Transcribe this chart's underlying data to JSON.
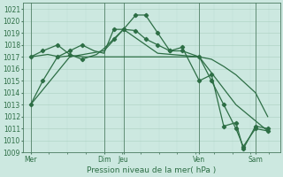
{
  "xlabel": "Pression niveau de la mer( hPa )",
  "ylim": [
    1009,
    1021.5
  ],
  "yticks": [
    1009,
    1010,
    1011,
    1012,
    1013,
    1014,
    1015,
    1016,
    1017,
    1018,
    1019,
    1020,
    1021
  ],
  "bg_color": "#cce8e0",
  "grid_major_color": "#aad0c0",
  "grid_minor_color": "#bbddd4",
  "line_color": "#2d6e45",
  "vline_color": "#4a7a60",
  "xlim": [
    0,
    10.5
  ],
  "xtick_positions": [
    0.3,
    3.3,
    4.1,
    7.2,
    9.5
  ],
  "xtick_labels": [
    "Mer",
    "Dim",
    "Jeu",
    "Ven",
    "Sam"
  ],
  "vlines_x": [
    0.3,
    3.3,
    4.1,
    7.2,
    9.5
  ],
  "series1_x": [
    0.3,
    0.8,
    1.4,
    1.9,
    2.4,
    2.9,
    3.3,
    3.7,
    4.1,
    4.6,
    5.0,
    5.5,
    6.0,
    6.5,
    7.2,
    7.7,
    8.2,
    8.7,
    9.0,
    9.5,
    10.0
  ],
  "series1_y": [
    1013.0,
    1015.0,
    1017.0,
    1017.5,
    1018.0,
    1017.5,
    1017.3,
    1019.3,
    1019.3,
    1020.5,
    1020.5,
    1019.0,
    1017.5,
    1017.5,
    1017.0,
    1015.0,
    1013.0,
    1011.0,
    1009.5,
    1011.0,
    1010.8
  ],
  "series1_markers_x": [
    0.3,
    0.8,
    1.4,
    1.9,
    2.4,
    3.7,
    4.1,
    4.6,
    5.0,
    5.5,
    6.0,
    6.5,
    7.2,
    7.7,
    8.2,
    8.7,
    9.0,
    9.5,
    10.0
  ],
  "series1_markers_y": [
    1013.0,
    1015.0,
    1017.0,
    1017.5,
    1018.0,
    1019.3,
    1019.3,
    1020.5,
    1020.5,
    1019.0,
    1017.5,
    1017.5,
    1017.0,
    1015.0,
    1013.0,
    1011.0,
    1009.5,
    1011.0,
    1010.8
  ],
  "series2_x": [
    0.3,
    1.0,
    1.5,
    2.0,
    2.5,
    3.0,
    3.5,
    4.0,
    4.5,
    5.0,
    5.5,
    6.0,
    6.5,
    7.0,
    7.2,
    7.7,
    8.2,
    8.7,
    9.5,
    10.0
  ],
  "series2_y": [
    1017.0,
    1017.2,
    1017.0,
    1017.1,
    1017.0,
    1017.0,
    1017.0,
    1017.0,
    1017.0,
    1017.0,
    1017.0,
    1017.0,
    1017.0,
    1017.0,
    1017.0,
    1016.8,
    1016.2,
    1015.5,
    1014.0,
    1012.0
  ],
  "series3_x": [
    0.3,
    1.9,
    3.3,
    4.1,
    5.5,
    7.2,
    8.7,
    10.0
  ],
  "series3_y": [
    1013.0,
    1017.0,
    1017.5,
    1019.3,
    1017.3,
    1017.0,
    1013.0,
    1010.8
  ],
  "series4_x": [
    0.3,
    0.8,
    1.4,
    1.9,
    2.4,
    3.0,
    3.3,
    3.7,
    4.1,
    4.6,
    5.0,
    5.5,
    6.0,
    6.5,
    7.2,
    7.7,
    8.2,
    8.7,
    9.0,
    9.5,
    10.0
  ],
  "series4_y": [
    1017.0,
    1017.5,
    1018.0,
    1017.2,
    1016.8,
    1017.2,
    1017.7,
    1018.5,
    1019.3,
    1019.2,
    1018.5,
    1018.0,
    1017.5,
    1017.8,
    1015.0,
    1015.5,
    1011.2,
    1011.5,
    1009.3,
    1011.2,
    1011.0
  ],
  "series4_markers_x": [
    0.3,
    0.8,
    1.4,
    1.9,
    2.4,
    3.7,
    4.1,
    4.6,
    5.0,
    5.5,
    6.0,
    6.5,
    7.2,
    7.7,
    8.2,
    8.7,
    9.0,
    9.5,
    10.0
  ],
  "series4_markers_y": [
    1017.0,
    1017.5,
    1018.0,
    1017.2,
    1016.8,
    1018.5,
    1019.3,
    1019.2,
    1018.5,
    1018.0,
    1017.5,
    1017.8,
    1015.0,
    1015.5,
    1011.2,
    1011.5,
    1009.3,
    1011.2,
    1011.0
  ]
}
